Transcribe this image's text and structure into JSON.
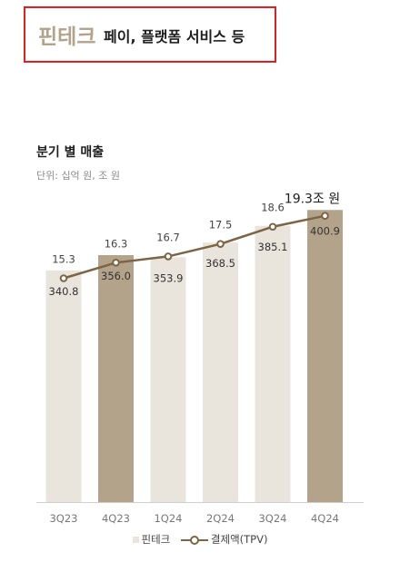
{
  "heading": {
    "main": "핀테크",
    "rest": "페이, 플랫폼 서비스 등"
  },
  "chart_title": "분기 별 매출",
  "unit_label": "단위: 십억 원, 조 원",
  "colors": {
    "bar_light": "#e9e4dc",
    "bar_dark": "#b4a38b",
    "line": "#7b6545",
    "accent_box": "#e02020"
  },
  "chart_data": {
    "type": "bar+line",
    "categories": [
      "3Q23",
      "4Q23",
      "1Q24",
      "2Q24",
      "3Q24",
      "4Q24"
    ],
    "series": [
      {
        "name": "핀테크",
        "type": "bar",
        "values": [
          340.8,
          356.0,
          353.9,
          368.5,
          385.1,
          400.9
        ],
        "labels": [
          "340.8",
          "356.0",
          "353.9",
          "368.5",
          "385.1",
          "400.9"
        ]
      },
      {
        "name": "결제액(TPV)",
        "type": "line",
        "values": [
          15.3,
          16.3,
          16.7,
          17.5,
          18.6,
          19.3
        ],
        "labels": [
          "15.3",
          "16.3",
          "16.7",
          "17.5",
          "18.6",
          "19.3조 원"
        ]
      }
    ],
    "highlight_bars": [
      1,
      5
    ],
    "grid": false
  }
}
